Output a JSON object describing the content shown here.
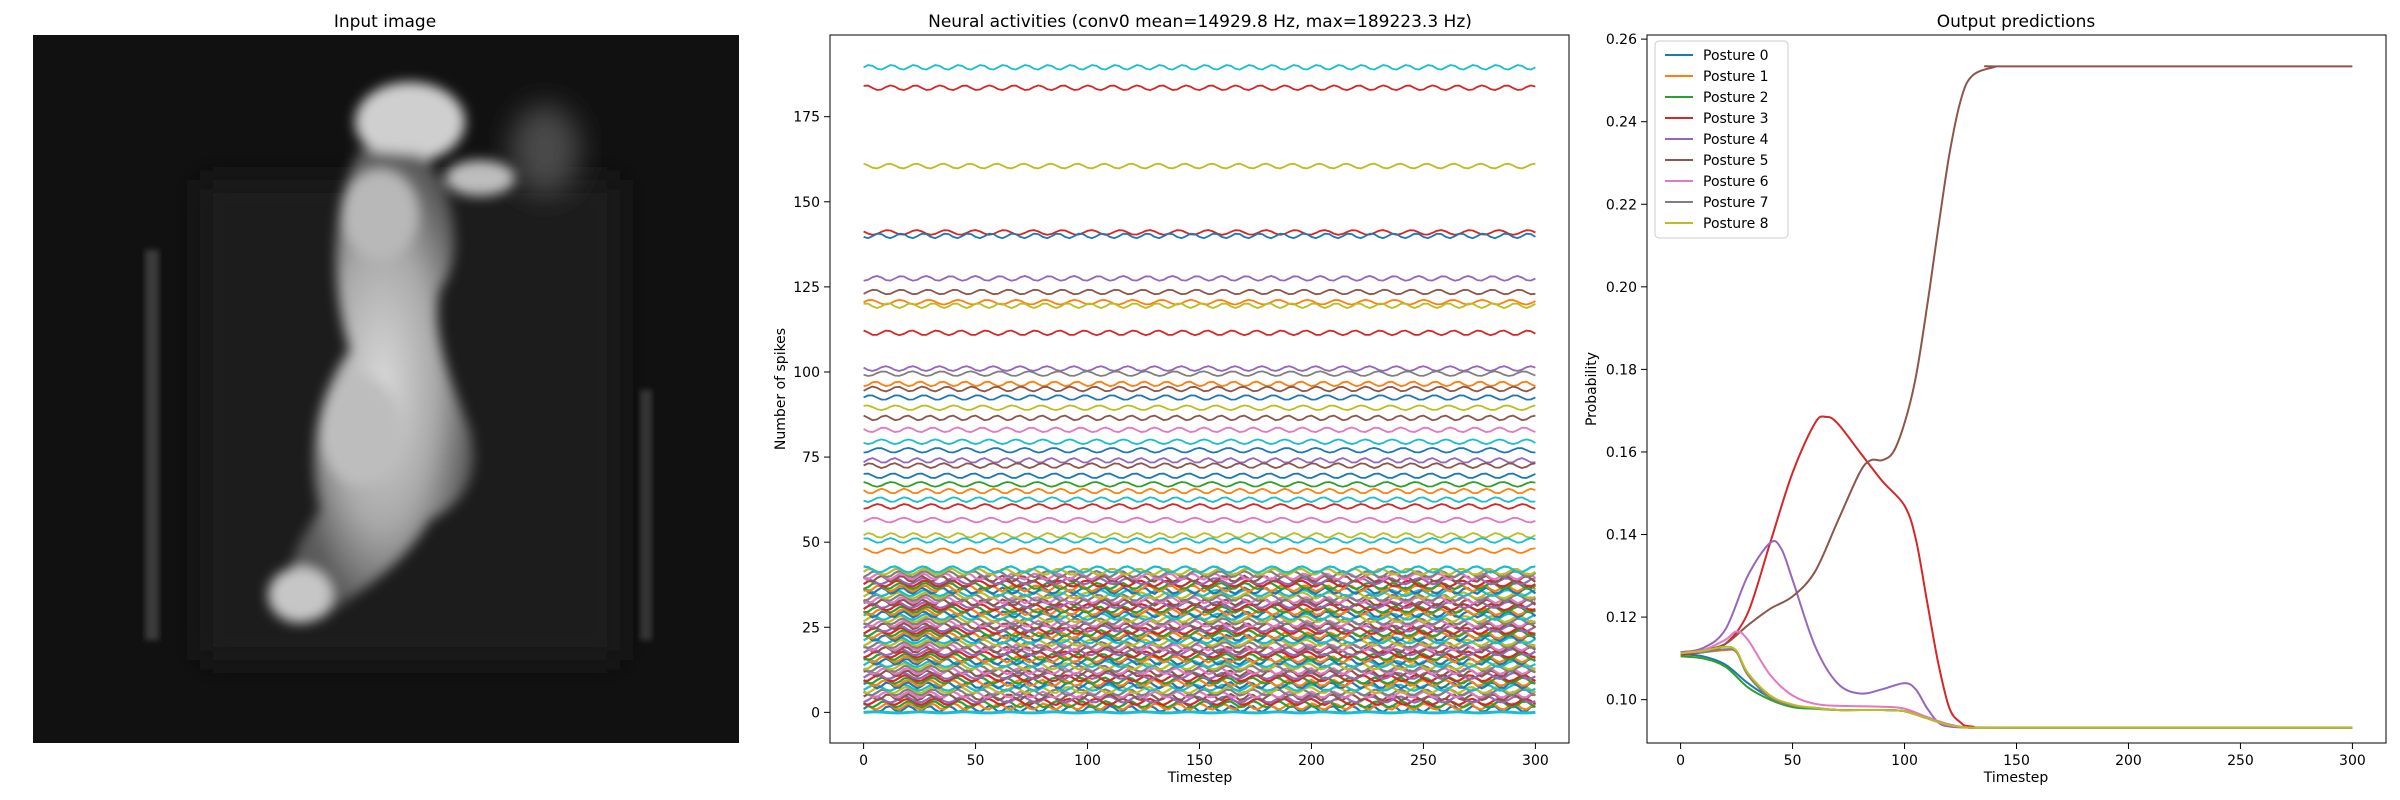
{
  "chart_data": [
    {
      "type": "image",
      "title": "Input image",
      "image_content": "grayscale-silhouette-person-jumping"
    },
    {
      "type": "line",
      "title": "Neural activities (conv0 mean=14929.8 Hz, max=189223.3 Hz)",
      "xlabel": "Timestep",
      "ylabel": "Number of spikes",
      "xlim": [
        -15,
        315
      ],
      "ylim": [
        -9,
        199
      ],
      "xticks": [
        0,
        50,
        100,
        150,
        200,
        250,
        300
      ],
      "yticks": [
        0,
        25,
        50,
        75,
        100,
        125,
        150,
        175
      ],
      "grid": false,
      "legend": "none",
      "highlighted_series_levels": [
        {
          "level": 189.5,
          "color": "#17becf"
        },
        {
          "level": 183.5,
          "color": "#d62728"
        },
        {
          "level": 160.5,
          "color": "#bcbd22"
        },
        {
          "level": 141,
          "color": "#d62728"
        },
        {
          "level": 140,
          "color": "#1f77b4"
        },
        {
          "level": 127.5,
          "color": "#9467bd"
        },
        {
          "level": 123.5,
          "color": "#8c564b"
        },
        {
          "level": 120.5,
          "color": "#ff7f0e"
        },
        {
          "level": 119.5,
          "color": "#bcbd22"
        },
        {
          "level": 111.5,
          "color": "#d62728"
        },
        {
          "level": 101,
          "color": "#9467bd"
        },
        {
          "level": 99.5,
          "color": "#7f7f7f"
        },
        {
          "level": 96.5,
          "color": "#ff7f0e"
        },
        {
          "level": 95,
          "color": "#8c564b"
        },
        {
          "level": 92.5,
          "color": "#1f77b4"
        },
        {
          "level": 89.5,
          "color": "#bcbd22"
        },
        {
          "level": 86.5,
          "color": "#8c564b"
        },
        {
          "level": 83,
          "color": "#e377c2"
        },
        {
          "level": 79.5,
          "color": "#17becf"
        },
        {
          "level": 77,
          "color": "#1f77b4"
        },
        {
          "level": 74,
          "color": "#9467bd"
        },
        {
          "level": 72.5,
          "color": "#8c564b"
        },
        {
          "level": 69.5,
          "color": "#1f77b4"
        },
        {
          "level": 67,
          "color": "#2ca02c"
        },
        {
          "level": 65,
          "color": "#ff7f0e"
        },
        {
          "level": 62.5,
          "color": "#17becf"
        },
        {
          "level": 60.5,
          "color": "#d62728"
        },
        {
          "level": 56.5,
          "color": "#e377c2"
        },
        {
          "level": 52,
          "color": "#bcbd22"
        },
        {
          "level": 50.5,
          "color": "#17becf"
        },
        {
          "level": 47.5,
          "color": "#ff7f0e"
        }
      ],
      "dense_band": {
        "min": 0,
        "max": 42,
        "series_count": 60
      },
      "palette": [
        "#1f77b4",
        "#ff7f0e",
        "#2ca02c",
        "#d62728",
        "#9467bd",
        "#8c564b",
        "#e377c2",
        "#7f7f7f",
        "#bcbd22",
        "#17becf"
      ]
    },
    {
      "type": "line",
      "title": "Output predictions",
      "xlabel": "Timestep",
      "ylabel": "Probability",
      "xlim": [
        -15,
        315
      ],
      "ylim": [
        0.0895,
        0.261
      ],
      "xticks": [
        0,
        50,
        100,
        150,
        200,
        250,
        300
      ],
      "yticks": [
        0.1,
        0.12,
        0.14,
        0.16,
        0.18,
        0.2,
        0.22,
        0.24,
        0.26
      ],
      "ytick_labels": [
        "0.10",
        "0.12",
        "0.14",
        "0.16",
        "0.18",
        "0.20",
        "0.22",
        "0.24",
        "0.26"
      ],
      "grid": false,
      "legend": "top-left",
      "series": [
        {
          "name": "Posture 0",
          "color": "#1f77b4",
          "points": [
            [
              0,
              0.111
            ],
            [
              10,
              0.1105
            ],
            [
              20,
              0.1085
            ],
            [
              30,
              0.104
            ],
            [
              40,
              0.1005
            ],
            [
              50,
              0.0985
            ],
            [
              60,
              0.098
            ],
            [
              70,
              0.0975
            ],
            [
              90,
              0.0975
            ],
            [
              100,
              0.0972
            ],
            [
              110,
              0.0955
            ],
            [
              120,
              0.0938
            ],
            [
              130,
              0.0932
            ],
            [
              150,
              0.0932
            ],
            [
              300,
              0.0932
            ]
          ]
        },
        {
          "name": "Posture 1",
          "color": "#ff7f0e",
          "points": [
            [
              0,
              0.1115
            ],
            [
              10,
              0.1115
            ],
            [
              20,
              0.112
            ],
            [
              25,
              0.1115
            ],
            [
              30,
              0.106
            ],
            [
              40,
              0.1005
            ],
            [
              50,
              0.0985
            ],
            [
              60,
              0.098
            ],
            [
              70,
              0.0975
            ],
            [
              90,
              0.0975
            ],
            [
              100,
              0.0972
            ],
            [
              110,
              0.0955
            ],
            [
              120,
              0.0938
            ],
            [
              130,
              0.0932
            ],
            [
              150,
              0.0932
            ],
            [
              300,
              0.0932
            ]
          ]
        },
        {
          "name": "Posture 2",
          "color": "#2ca02c",
          "points": [
            [
              0,
              0.1105
            ],
            [
              10,
              0.11
            ],
            [
              20,
              0.108
            ],
            [
              30,
              0.103
            ],
            [
              40,
              0.1
            ],
            [
              50,
              0.0982
            ],
            [
              60,
              0.0978
            ],
            [
              70,
              0.0975
            ],
            [
              90,
              0.0975
            ],
            [
              100,
              0.0972
            ],
            [
              110,
              0.0955
            ],
            [
              120,
              0.0938
            ],
            [
              130,
              0.0932
            ],
            [
              150,
              0.0932
            ],
            [
              300,
              0.0932
            ]
          ]
        },
        {
          "name": "Posture 3",
          "color": "#d62728",
          "points": [
            [
              0,
              0.111
            ],
            [
              10,
              0.1115
            ],
            [
              20,
              0.1135
            ],
            [
              30,
              0.121
            ],
            [
              40,
              0.138
            ],
            [
              50,
              0.155
            ],
            [
              60,
              0.167
            ],
            [
              65,
              0.1685
            ],
            [
              70,
              0.167
            ],
            [
              80,
              0.16
            ],
            [
              90,
              0.153
            ],
            [
              100,
              0.147
            ],
            [
              105,
              0.139
            ],
            [
              110,
              0.124
            ],
            [
              115,
              0.109
            ],
            [
              120,
              0.098
            ],
            [
              125,
              0.0945
            ],
            [
              130,
              0.0935
            ],
            [
              150,
              0.0932
            ],
            [
              300,
              0.0932
            ]
          ]
        },
        {
          "name": "Posture 4",
          "color": "#9467bd",
          "points": [
            [
              0,
              0.1115
            ],
            [
              10,
              0.1125
            ],
            [
              20,
              0.117
            ],
            [
              30,
              0.13
            ],
            [
              40,
              0.138
            ],
            [
              45,
              0.1365
            ],
            [
              50,
              0.129
            ],
            [
              60,
              0.113
            ],
            [
              70,
              0.104
            ],
            [
              80,
              0.1015
            ],
            [
              90,
              0.1025
            ],
            [
              100,
              0.104
            ],
            [
              105,
              0.1025
            ],
            [
              110,
              0.098
            ],
            [
              115,
              0.0945
            ],
            [
              120,
              0.0935
            ],
            [
              130,
              0.0932
            ],
            [
              150,
              0.0932
            ],
            [
              300,
              0.0932
            ]
          ]
        },
        {
          "name": "Posture 5",
          "color": "#8c564b",
          "points": [
            [
              0,
              0.1115
            ],
            [
              10,
              0.112
            ],
            [
              20,
              0.1135
            ],
            [
              30,
              0.118
            ],
            [
              40,
              0.122
            ],
            [
              50,
              0.125
            ],
            [
              60,
              0.131
            ],
            [
              70,
              0.143
            ],
            [
              80,
              0.155
            ],
            [
              85,
              0.158
            ],
            [
              90,
              0.158
            ],
            [
              95,
              0.16
            ],
            [
              100,
              0.167
            ],
            [
              105,
              0.178
            ],
            [
              110,
              0.195
            ],
            [
              115,
              0.214
            ],
            [
              120,
              0.232
            ],
            [
              125,
              0.245
            ],
            [
              130,
              0.251
            ],
            [
              140,
              0.2532
            ],
            [
              150,
              0.2534
            ],
            [
              300,
              0.2534
            ]
          ]
        },
        {
          "name": "Posture 6",
          "color": "#e377c2",
          "points": [
            [
              0,
              0.1115
            ],
            [
              10,
              0.112
            ],
            [
              20,
              0.1145
            ],
            [
              25,
              0.1165
            ],
            [
              30,
              0.1145
            ],
            [
              40,
              0.106
            ],
            [
              50,
              0.101
            ],
            [
              60,
              0.099
            ],
            [
              70,
              0.0985
            ],
            [
              90,
              0.0983
            ],
            [
              100,
              0.0978
            ],
            [
              110,
              0.0958
            ],
            [
              120,
              0.094
            ],
            [
              130,
              0.0932
            ],
            [
              150,
              0.0932
            ],
            [
              300,
              0.0932
            ]
          ]
        },
        {
          "name": "Posture 7",
          "color": "#7f7f7f",
          "points": [
            [
              0,
              0.1115
            ],
            [
              10,
              0.1115
            ],
            [
              20,
              0.1122
            ],
            [
              25,
              0.1115
            ],
            [
              30,
              0.106
            ],
            [
              40,
              0.1005
            ],
            [
              50,
              0.0985
            ],
            [
              60,
              0.098
            ],
            [
              70,
              0.0975
            ],
            [
              90,
              0.0975
            ],
            [
              100,
              0.0972
            ],
            [
              110,
              0.0955
            ],
            [
              120,
              0.0938
            ],
            [
              130,
              0.0932
            ],
            [
              150,
              0.0932
            ],
            [
              300,
              0.0932
            ]
          ]
        },
        {
          "name": "Posture 8",
          "color": "#bcbd22",
          "points": [
            [
              0,
              0.1112
            ],
            [
              10,
              0.1118
            ],
            [
              20,
              0.1128
            ],
            [
              25,
              0.1118
            ],
            [
              30,
              0.1065
            ],
            [
              40,
              0.101
            ],
            [
              50,
              0.0988
            ],
            [
              60,
              0.098
            ],
            [
              70,
              0.0975
            ],
            [
              90,
              0.0975
            ],
            [
              100,
              0.0972
            ],
            [
              110,
              0.0955
            ],
            [
              120,
              0.0938
            ],
            [
              130,
              0.0932
            ],
            [
              150,
              0.0932
            ],
            [
              300,
              0.0932
            ]
          ]
        }
      ]
    }
  ]
}
